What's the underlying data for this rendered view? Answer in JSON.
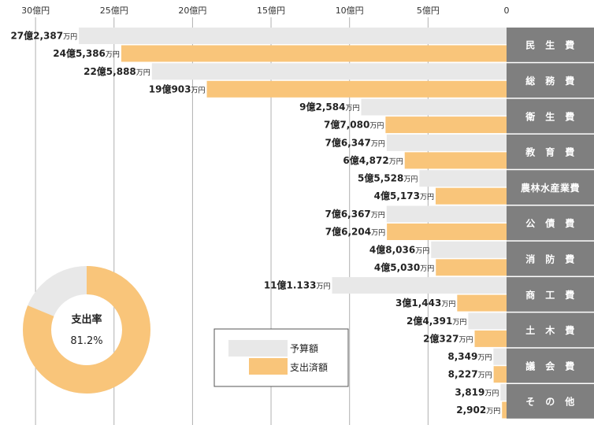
{
  "chart_data": {
    "type": "bar",
    "orientation": "horizontal",
    "axis_direction": "right-to-left",
    "unit": "億円",
    "xlim": [
      0,
      32
    ],
    "ticks": [
      {
        "value": 30,
        "label": "30億円"
      },
      {
        "value": 25,
        "label": "25億円"
      },
      {
        "value": 20,
        "label": "20億円"
      },
      {
        "value": 15,
        "label": "15億円"
      },
      {
        "value": 10,
        "label": "10億円"
      },
      {
        "value": 5,
        "label": "5億円"
      },
      {
        "value": 0,
        "label": "0"
      }
    ],
    "colors": {
      "budget": "#e8e8e8",
      "spent": "#f9c57a",
      "category_band": "#7f7f7f",
      "gridline": "#b0b0b0"
    },
    "series": [
      {
        "name": "予算額",
        "key": "budget"
      },
      {
        "name": "支出済額",
        "key": "spent"
      }
    ],
    "categories": [
      {
        "name": "民　生　費",
        "budget": {
          "value": 27.2387,
          "num": "27億2,387",
          "unit": "万円"
        },
        "spent": {
          "value": 24.5386,
          "num": "24億5,386",
          "unit": "万円"
        }
      },
      {
        "name": "総　務　費",
        "budget": {
          "value": 22.5888,
          "num": "22億5,888",
          "unit": "万円"
        },
        "spent": {
          "value": 19.0903,
          "num": "19億903",
          "unit": "万円"
        }
      },
      {
        "name": "衛　生　費",
        "budget": {
          "value": 9.2584,
          "num": "9億2,584",
          "unit": "万円"
        },
        "spent": {
          "value": 7.708,
          "num": "7億7,080",
          "unit": "万円"
        }
      },
      {
        "name": "教　育　費",
        "budget": {
          "value": 7.6347,
          "num": "7億6,347",
          "unit": "万円"
        },
        "spent": {
          "value": 6.4872,
          "num": "6億4,872",
          "unit": "万円"
        }
      },
      {
        "name": "農林水産業費",
        "budget": {
          "value": 5.5528,
          "num": "5億5,528",
          "unit": "万円"
        },
        "spent": {
          "value": 4.5173,
          "num": "4億5,173",
          "unit": "万円"
        }
      },
      {
        "name": "公　債　費",
        "budget": {
          "value": 7.6367,
          "num": "7億6,367",
          "unit": "万円"
        },
        "spent": {
          "value": 7.6204,
          "num": "7億6,204",
          "unit": "万円"
        }
      },
      {
        "name": "消　防　費",
        "budget": {
          "value": 4.8036,
          "num": "4億8,036",
          "unit": "万円"
        },
        "spent": {
          "value": 4.503,
          "num": "4億5,030",
          "unit": "万円"
        }
      },
      {
        "name": "商　工　費",
        "budget": {
          "value": 11.1133,
          "num": "11億1.133",
          "unit": "万円"
        },
        "spent": {
          "value": 3.1443,
          "num": "3億1,443",
          "unit": "万円"
        }
      },
      {
        "name": "土　木　費",
        "budget": {
          "value": 2.4391,
          "num": "2億4,391",
          "unit": "万円"
        },
        "spent": {
          "value": 2.0327,
          "num": "2億327",
          "unit": "万円"
        }
      },
      {
        "name": "議　会　費",
        "budget": {
          "value": 0.8349,
          "num": "8,349",
          "unit": "万円"
        },
        "spent": {
          "value": 0.8227,
          "num": "8,227",
          "unit": "万円"
        }
      },
      {
        "name": "そ　の　他",
        "budget": {
          "value": 0.3819,
          "num": "3,819",
          "unit": "万円"
        },
        "spent": {
          "value": 0.2902,
          "num": "2,902",
          "unit": "万円"
        }
      }
    ],
    "donut": {
      "title": "支出率",
      "value_label": "81.2%",
      "fraction": 0.812,
      "colors": {
        "filled": "#f9c57a",
        "rest": "#e8e8e8"
      }
    },
    "legend_placement": "bottom-center"
  }
}
